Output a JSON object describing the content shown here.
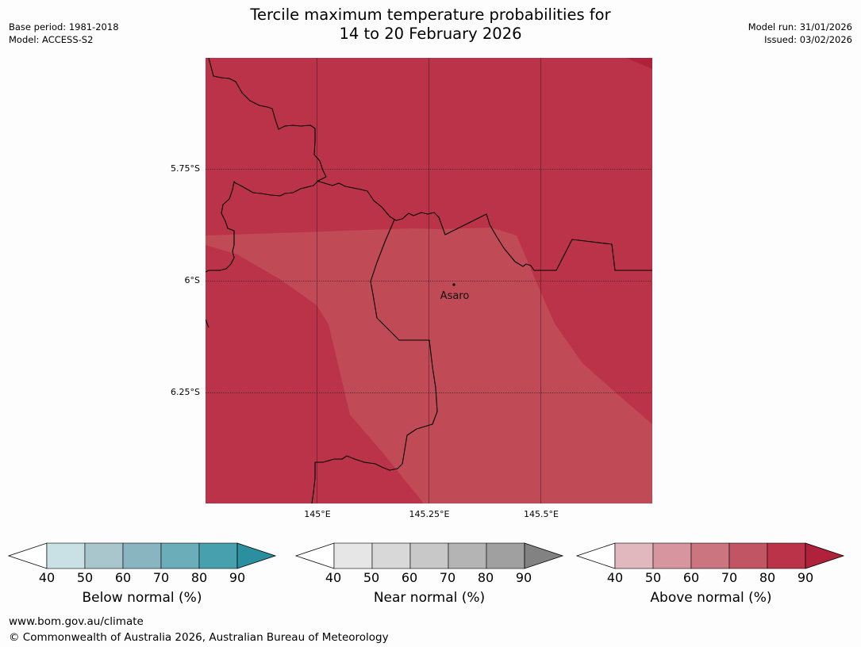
{
  "header": {
    "base_period": "Base period: 1981-2018",
    "model": "Model: ACCESS-S2",
    "model_run": "Model run: 31/01/2026",
    "issued": "Issued: 03/02/2026"
  },
  "title": {
    "line1": "Tercile maximum temperature probabilities for",
    "line2": "14 to 20 February 2026"
  },
  "map": {
    "lat_labels": [
      "5.75°S",
      "6°S",
      "6.25°S"
    ],
    "lon_labels": [
      "145°E",
      "145.25°E",
      "145.5°E"
    ],
    "place": {
      "name": "Asaro",
      "lon": 145.29,
      "lat": -6.01
    },
    "colors": {
      "base": "#bb3349",
      "lighter_region": "#c04a56",
      "darkest_corner": "#b0223c"
    }
  },
  "colorbars": [
    {
      "label": "Below normal (%)",
      "ticks": [
        "40",
        "50",
        "60",
        "70",
        "80",
        "90"
      ],
      "colors": [
        "#c9e0e4",
        "#a8c6cc",
        "#89b5c0",
        "#6badb9",
        "#47a0ae",
        "#2b8f9f"
      ]
    },
    {
      "label": "Near normal (%)",
      "ticks": [
        "40",
        "50",
        "60",
        "70",
        "80",
        "90"
      ],
      "colors": [
        "#e6e6e6",
        "#d8d8d8",
        "#c8c8c8",
        "#b4b4b4",
        "#a0a0a0",
        "#828282"
      ]
    },
    {
      "label": "Above normal (%)",
      "ticks": [
        "40",
        "50",
        "60",
        "70",
        "80",
        "90"
      ],
      "colors": [
        "#e2b8bf",
        "#d6959f",
        "#cb7580",
        "#c25563",
        "#bb3349",
        "#b0223c"
      ]
    }
  ],
  "footer": {
    "url": "www.bom.gov.au/climate",
    "copyright": "© Commonwealth of Australia 2026, Australian Bureau of Meteorology"
  }
}
